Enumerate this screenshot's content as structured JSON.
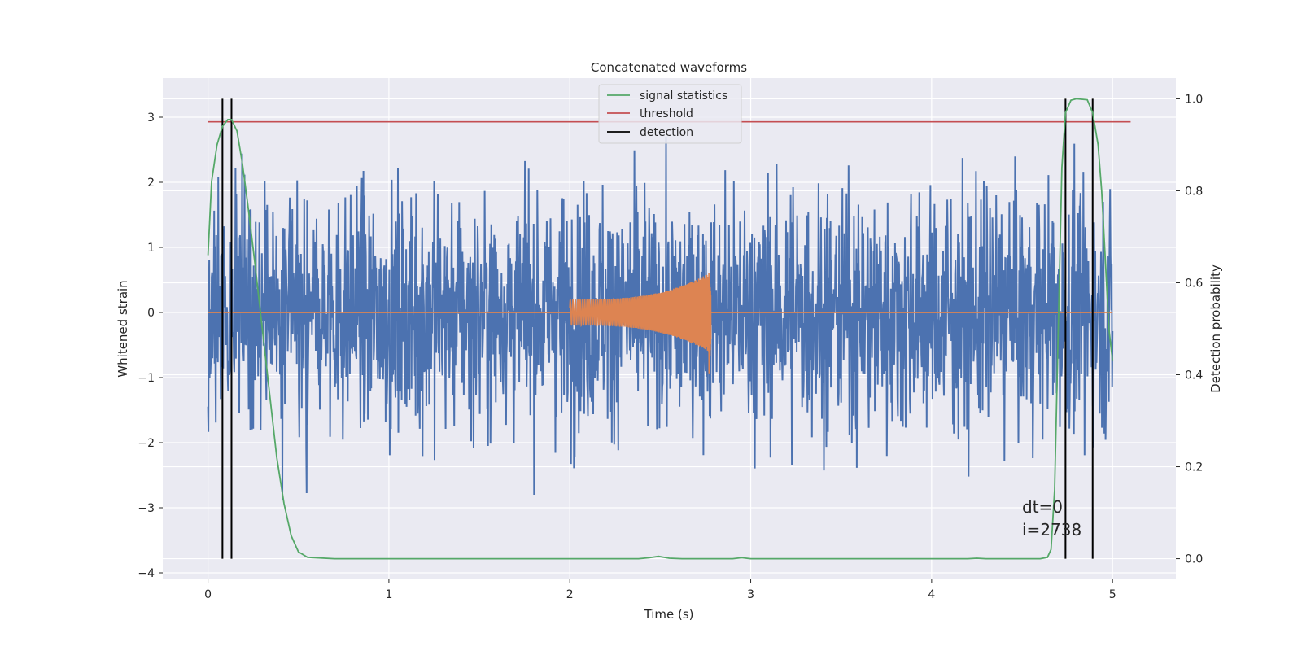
{
  "chart_data": {
    "type": "line",
    "title": "Concatenated waveforms",
    "xlabel": "Time (s)",
    "ylabel_left": "Whitened strain",
    "ylabel_right": "Detection probability",
    "xlim": [
      -0.25,
      5.35
    ],
    "ylim_left": [
      -4.1,
      3.6
    ],
    "ylim_right": [
      -0.045,
      1.045
    ],
    "x_ticks": [
      0,
      1,
      2,
      3,
      4,
      5
    ],
    "y_ticks_left": [
      -4,
      -3,
      -2,
      -1,
      0,
      1,
      2,
      3
    ],
    "y_ticks_right": [
      0.0,
      0.2,
      0.4,
      0.6,
      0.8,
      1.0
    ],
    "y_tick_labels_left": [
      "−4",
      "−3",
      "−2",
      "−1",
      "0",
      "1",
      "2",
      "3"
    ],
    "y_tick_labels_right": [
      "0.0",
      "0.2",
      "0.4",
      "0.6",
      "0.8",
      "1.0"
    ],
    "grid": true,
    "background": "#eaeaf2",
    "legend": {
      "placement": "upper-center",
      "entries": [
        {
          "label": "signal statistics",
          "color": "#55a868"
        },
        {
          "label": "threshold",
          "color": "#c44e52"
        },
        {
          "label": "detection",
          "color": "#000000"
        }
      ]
    },
    "series": [
      {
        "kind": "whitened-noise-strain",
        "axis": "left",
        "color": "#4c72b0",
        "x_range": [
          0,
          5
        ],
        "typical_amplitude": 1.0,
        "max_value": 3.45,
        "min_value": -3.15
      },
      {
        "kind": "injected-chirp",
        "axis": "left",
        "color": "#dd8452",
        "x_start": 2.0,
        "x_end": 2.78,
        "amplitude_start": 0.2,
        "amplitude_peak": 0.62,
        "amplitude_min_peak": -1.0,
        "baseline_x_range": [
          0,
          5
        ]
      },
      {
        "name": "signal statistics",
        "axis": "right",
        "color": "#55a868",
        "points": [
          [
            0.0,
            0.66
          ],
          [
            0.02,
            0.82
          ],
          [
            0.05,
            0.9
          ],
          [
            0.08,
            0.94
          ],
          [
            0.11,
            0.955
          ],
          [
            0.13,
            0.955
          ],
          [
            0.16,
            0.93
          ],
          [
            0.19,
            0.86
          ],
          [
            0.22,
            0.77
          ],
          [
            0.26,
            0.64
          ],
          [
            0.3,
            0.5
          ],
          [
            0.34,
            0.36
          ],
          [
            0.38,
            0.22
          ],
          [
            0.42,
            0.12
          ],
          [
            0.46,
            0.05
          ],
          [
            0.5,
            0.015
          ],
          [
            0.55,
            0.003
          ],
          [
            0.7,
            0.0
          ],
          [
            1.5,
            0.0
          ],
          [
            2.38,
            0.0
          ],
          [
            2.44,
            0.002
          ],
          [
            2.49,
            0.005
          ],
          [
            2.55,
            0.001
          ],
          [
            2.62,
            0.0
          ],
          [
            2.9,
            0.0
          ],
          [
            2.95,
            0.002
          ],
          [
            3.0,
            0.0
          ],
          [
            4.2,
            0.0
          ],
          [
            4.25,
            0.001
          ],
          [
            4.3,
            0.0
          ],
          [
            4.6,
            0.0
          ],
          [
            4.64,
            0.003
          ],
          [
            4.66,
            0.02
          ],
          [
            4.68,
            0.15
          ],
          [
            4.7,
            0.5
          ],
          [
            4.72,
            0.85
          ],
          [
            4.74,
            0.97
          ],
          [
            4.77,
            0.997
          ],
          [
            4.8,
            1.0
          ],
          [
            4.86,
            0.998
          ],
          [
            4.89,
            0.97
          ],
          [
            4.92,
            0.9
          ],
          [
            4.94,
            0.8
          ],
          [
            4.96,
            0.65
          ],
          [
            4.98,
            0.5
          ],
          [
            5.0,
            0.43
          ]
        ]
      },
      {
        "name": "threshold",
        "axis": "right",
        "color": "#c44e52",
        "x_range": [
          0.0,
          5.1
        ],
        "value": 0.95
      },
      {
        "name": "detection",
        "axis": "right",
        "color": "#000000",
        "x": [
          0.08,
          0.13,
          4.74,
          4.89
        ],
        "y_range": [
          0.0,
          1.0
        ]
      }
    ],
    "annotations": [
      "dt=0",
      "i=2738"
    ]
  }
}
